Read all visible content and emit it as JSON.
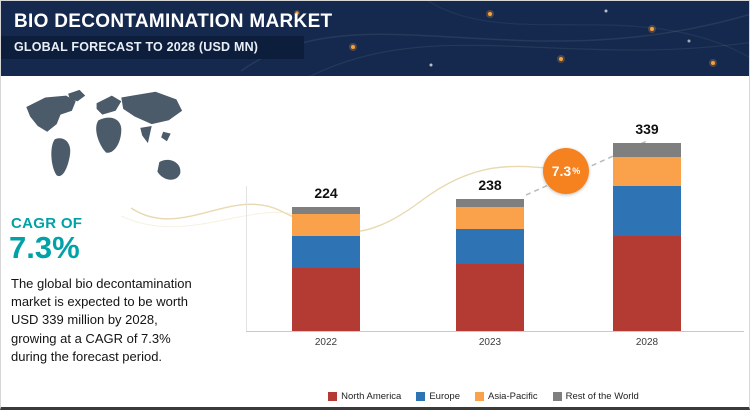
{
  "header": {
    "title": "BIO DECONTAMINATION MARKET",
    "subtitle": "GLOBAL FORECAST TO 2028 (USD MN)"
  },
  "sidebar": {
    "cagr_label": "CAGR OF",
    "cagr_value": "7.3%",
    "description": "The global bio decontamination market is expected to be worth USD 339 million by 2028, growing at a CAGR of 7.3% during the forecast period."
  },
  "chart_data": {
    "type": "bar",
    "stacked": true,
    "title": "Bio Decontamination Market, Global Forecast (USD MN)",
    "categories": [
      "2022",
      "2023",
      "2028"
    ],
    "totals": [
      224,
      238,
      339
    ],
    "series": [
      {
        "name": "North America",
        "color": "#b43b33",
        "values": [
          114,
          120,
          171
        ]
      },
      {
        "name": "Europe",
        "color": "#2e74b5",
        "values": [
          57,
          63,
          90
        ]
      },
      {
        "name": "Asia-Pacific",
        "color": "#f9a24b",
        "values": [
          39,
          40,
          52
        ]
      },
      {
        "name": "Rest of the World",
        "color": "#7f7f7f",
        "values": [
          14,
          15,
          26
        ]
      }
    ],
    "badge_value": "7.3",
    "badge_unit": "%",
    "unit": "USD MN",
    "legend_position": "bottom",
    "ylim": [
      0,
      360
    ],
    "grid": false
  },
  "colors": {
    "header_navy": "#14294d",
    "accent_teal": "#00a1a7",
    "badge_orange": "#f6821f"
  }
}
